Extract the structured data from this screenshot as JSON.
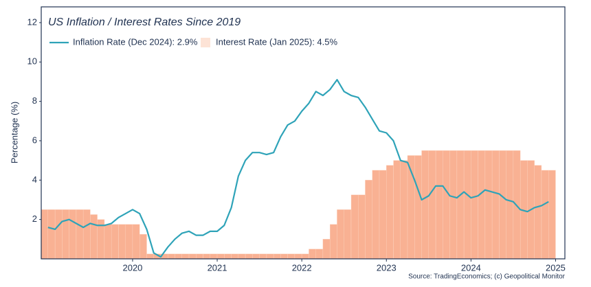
{
  "chart_data": {
    "type": "line-bar",
    "title": "US Inflation / Interest Rates Since 2019",
    "y_label": "Percentage (%)",
    "source": "Source: TradingEconomics; (c) Geopolitical Monitor",
    "xlim": [
      2018.92,
      2025.11
    ],
    "xticks": [
      2020,
      2021,
      2022,
      2023,
      2024,
      2025
    ],
    "ylim": [
      0,
      12.8
    ],
    "yticks": [
      2,
      4,
      6,
      8,
      10,
      12
    ],
    "x": [
      2019,
      2019.083,
      2019.167,
      2019.25,
      2019.333,
      2019.417,
      2019.5,
      2019.583,
      2019.667,
      2019.75,
      2019.833,
      2019.917,
      2020,
      2020.083,
      2020.167,
      2020.25,
      2020.333,
      2020.417,
      2020.5,
      2020.583,
      2020.667,
      2020.75,
      2020.833,
      2020.917,
      2021,
      2021.083,
      2021.167,
      2021.25,
      2021.333,
      2021.417,
      2021.5,
      2021.583,
      2021.667,
      2021.75,
      2021.833,
      2021.917,
      2022,
      2022.083,
      2022.167,
      2022.25,
      2022.333,
      2022.417,
      2022.5,
      2022.583,
      2022.667,
      2022.75,
      2022.833,
      2022.917,
      2023,
      2023.083,
      2023.167,
      2023.25,
      2023.333,
      2023.417,
      2023.5,
      2023.583,
      2023.667,
      2023.75,
      2023.833,
      2023.917,
      2024,
      2024.083,
      2024.167,
      2024.25,
      2024.333,
      2024.417,
      2024.5,
      2024.583,
      2024.667,
      2024.75,
      2024.833,
      2024.917,
      2025
    ],
    "series": [
      {
        "name": "Inflation Rate (Dec 2024): 2.9%",
        "kind": "line",
        "color": "#2ea3b8",
        "values": [
          1.6,
          1.5,
          1.9,
          2.0,
          1.8,
          1.6,
          1.8,
          1.7,
          1.7,
          1.8,
          2.1,
          2.3,
          2.5,
          2.3,
          1.5,
          0.3,
          0.1,
          0.6,
          1.0,
          1.3,
          1.4,
          1.2,
          1.2,
          1.4,
          1.4,
          1.7,
          2.6,
          4.2,
          5.0,
          5.4,
          5.4,
          5.3,
          5.4,
          6.2,
          6.8,
          7.0,
          7.5,
          7.9,
          8.5,
          8.3,
          8.6,
          9.1,
          8.5,
          8.3,
          8.2,
          7.7,
          7.1,
          6.5,
          6.4,
          6.0,
          5.0,
          4.9,
          4.0,
          3.0,
          3.2,
          3.7,
          3.7,
          3.2,
          3.1,
          3.4,
          3.1,
          3.2,
          3.5,
          3.4,
          3.3,
          3.0,
          2.9,
          2.5,
          2.4,
          2.6,
          2.7,
          2.9,
          null
        ]
      },
      {
        "name": "Interest Rate (Jan 2025): 4.5%",
        "kind": "bar",
        "color": "#f9b193",
        "legend_color": "#fde3d6",
        "values": [
          2.5,
          2.5,
          2.5,
          2.5,
          2.5,
          2.5,
          2.5,
          2.25,
          2.0,
          1.75,
          1.75,
          1.75,
          1.75,
          1.75,
          1.25,
          0.25,
          0.25,
          0.25,
          0.25,
          0.25,
          0.25,
          0.25,
          0.25,
          0.25,
          0.25,
          0.25,
          0.25,
          0.25,
          0.25,
          0.25,
          0.25,
          0.25,
          0.25,
          0.25,
          0.25,
          0.25,
          0.25,
          0.25,
          0.5,
          0.5,
          1.0,
          1.75,
          2.5,
          2.5,
          3.25,
          3.25,
          4.0,
          4.5,
          4.5,
          4.75,
          5.0,
          5.0,
          5.25,
          5.25,
          5.5,
          5.5,
          5.5,
          5.5,
          5.5,
          5.5,
          5.5,
          5.5,
          5.5,
          5.5,
          5.5,
          5.5,
          5.5,
          5.5,
          5.0,
          5.0,
          4.75,
          4.5,
          4.5
        ]
      }
    ]
  }
}
